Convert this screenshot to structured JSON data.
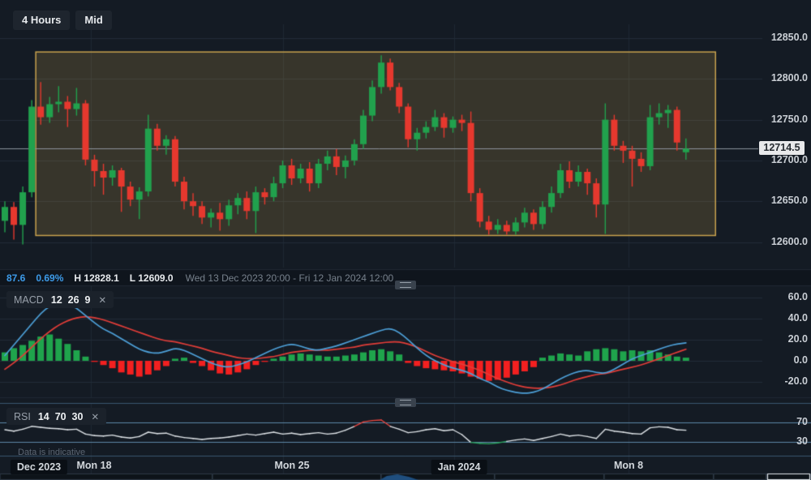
{
  "toolbar": {
    "timeframe_label": "4 Hours",
    "price_type_label": "Mid"
  },
  "price_axis": {
    "ticks": [
      {
        "value": 12850,
        "label": "12850.0"
      },
      {
        "value": 12800,
        "label": "12800.0"
      },
      {
        "value": 12750,
        "label": "12750.0"
      },
      {
        "value": 12700,
        "label": "12700.0"
      },
      {
        "value": 12650,
        "label": "12650.0"
      },
      {
        "value": 12600,
        "label": "12600.0"
      }
    ],
    "last_price_label": "12714.5"
  },
  "info_bar": {
    "change": "87.6",
    "change_pct": "0.69%",
    "high": "H 12828.1",
    "low": "L 12609.0",
    "date_range": "Wed 13 Dec 2023 20:00 - Fri 12 Jan 2024 12:00"
  },
  "macd_panel": {
    "name": "MACD",
    "params": "12  26  9",
    "close_label": "✕",
    "ticks": [
      {
        "value": 60,
        "label": "60.0"
      },
      {
        "value": 40,
        "label": "40.0"
      },
      {
        "value": 20,
        "label": "20.0"
      },
      {
        "value": 0,
        "label": "0.0"
      },
      {
        "value": -20,
        "label": "-20.0"
      }
    ]
  },
  "rsi_panel": {
    "name": "RSI",
    "params": "14  70  30",
    "close_label": "✕",
    "ticks": [
      {
        "value": 70,
        "label": "70"
      },
      {
        "value": 30,
        "label": "30"
      }
    ]
  },
  "time_axis": {
    "labels": [
      {
        "text": "Dec 2023",
        "chip": true
      },
      {
        "text": "Mon 18",
        "chip": false
      },
      {
        "text": "Mon 25",
        "chip": false
      },
      {
        "text": "Jan 2024",
        "chip": true
      },
      {
        "text": "Mon 8",
        "chip": false
      }
    ]
  },
  "footnote": "Data is indicative",
  "colors": {
    "background": "#141b24",
    "band_background": "#0f151d",
    "navigator_background": "#0d1319",
    "grid": "#222c38",
    "grid_vertical": "#1e2833",
    "candle_up": "#21a14d",
    "candle_down": "#e6382e",
    "box_border": "#c8a24e",
    "box_fill": "rgba(196,162,74,0.20)",
    "price_line": "#8b939c",
    "macd_line": "#4da0d8",
    "signal_line": "#e23d38",
    "hist_up": "#1fa44c",
    "hist_down": "#f32020",
    "rsi_line": "#dde2e6",
    "rsi_overbought": "#e8453f",
    "rsi_oversold": "#2aa35e",
    "level_line": "#5d87a8",
    "separator": "#1f2833",
    "navigator_box": "#2e3945",
    "navigator_highlight": "#dfe5ea",
    "navigator_area": "#1f4e7e"
  },
  "chart_data": [
    {
      "type": "candlestick",
      "timeframe": "4 Hours",
      "price_type": "Mid",
      "high": 12828.1,
      "low": 12609.0,
      "last_price": 12714.5,
      "ylim": [
        12555,
        12866
      ],
      "box_annotation": {
        "top": 12833,
        "bottom": 12608,
        "start_index": 3.45,
        "end_index": 79.3
      },
      "candles": [
        [
          12626,
          12650,
          12612,
          12643
        ],
        [
          12643,
          12649,
          12603,
          12621
        ],
        [
          12621,
          12668,
          12597,
          12661
        ],
        [
          12661,
          12774,
          12655,
          12766
        ],
        [
          12766,
          12796,
          12744,
          12753
        ],
        [
          12753,
          12778,
          12746,
          12769
        ],
        [
          12769,
          12791,
          12759,
          12772
        ],
        [
          12772,
          12779,
          12741,
          12763
        ],
        [
          12763,
          12789,
          12755,
          12770
        ],
        [
          12770,
          12774,
          12694,
          12701
        ],
        [
          12701,
          12707,
          12668,
          12687
        ],
        [
          12687,
          12696,
          12658,
          12679
        ],
        [
          12679,
          12694,
          12669,
          12688
        ],
        [
          12688,
          12691,
          12637,
          12668
        ],
        [
          12668,
          12674,
          12644,
          12652
        ],
        [
          12652,
          12667,
          12628,
          12662
        ],
        [
          12662,
          12756,
          12656,
          12739
        ],
        [
          12739,
          12745,
          12712,
          12718
        ],
        [
          12718,
          12731,
          12707,
          12726
        ],
        [
          12726,
          12730,
          12668,
          12674
        ],
        [
          12674,
          12680,
          12640,
          12650
        ],
        [
          12650,
          12660,
          12632,
          12644
        ],
        [
          12644,
          12650,
          12622,
          12630
        ],
        [
          12630,
          12641,
          12618,
          12636
        ],
        [
          12636,
          12648,
          12614,
          12628
        ],
        [
          12628,
          12652,
          12620,
          12645
        ],
        [
          12645,
          12660,
          12634,
          12654
        ],
        [
          12654,
          12662,
          12628,
          12638
        ],
        [
          12638,
          12668,
          12611,
          12661
        ],
        [
          12661,
          12666,
          12646,
          12655
        ],
        [
          12655,
          12680,
          12650,
          12672
        ],
        [
          12672,
          12700,
          12666,
          12694
        ],
        [
          12694,
          12702,
          12670,
          12678
        ],
        [
          12678,
          12696,
          12672,
          12690
        ],
        [
          12690,
          12698,
          12662,
          12672
        ],
        [
          12672,
          12702,
          12666,
          12696
        ],
        [
          12696,
          12712,
          12688,
          12705
        ],
        [
          12705,
          12714,
          12682,
          12692
        ],
        [
          12692,
          12706,
          12678,
          12700
        ],
        [
          12700,
          12726,
          12694,
          12720
        ],
        [
          12720,
          12762,
          12714,
          12755
        ],
        [
          12755,
          12798,
          12748,
          12790
        ],
        [
          12790,
          12829,
          12782,
          12820
        ],
        [
          12820,
          12825,
          12786,
          12790
        ],
        [
          12790,
          12795,
          12758,
          12766
        ],
        [
          12766,
          12770,
          12716,
          12726
        ],
        [
          12726,
          12740,
          12712,
          12734
        ],
        [
          12734,
          12748,
          12727,
          12741
        ],
        [
          12741,
          12762,
          12736,
          12753
        ],
        [
          12753,
          12758,
          12728,
          12740
        ],
        [
          12740,
          12754,
          12734,
          12750
        ],
        [
          12750,
          12756,
          12736,
          12746
        ],
        [
          12746,
          12760,
          12650,
          12660
        ],
        [
          12660,
          12666,
          12618,
          12625
        ],
        [
          12625,
          12632,
          12609,
          12615
        ],
        [
          12615,
          12628,
          12610,
          12621
        ],
        [
          12621,
          12626,
          12609,
          12613
        ],
        [
          12613,
          12630,
          12609,
          12624
        ],
        [
          12624,
          12642,
          12618,
          12636
        ],
        [
          12636,
          12640,
          12615,
          12622
        ],
        [
          12622,
          12650,
          12616,
          12643
        ],
        [
          12643,
          12668,
          12636,
          12660
        ],
        [
          12660,
          12696,
          12654,
          12688
        ],
        [
          12688,
          12699,
          12666,
          12674
        ],
        [
          12674,
          12694,
          12668,
          12686
        ],
        [
          12686,
          12690,
          12658,
          12672
        ],
        [
          12672,
          12678,
          12630,
          12646
        ],
        [
          12646,
          12770,
          12610,
          12750
        ],
        [
          12750,
          12756,
          12712,
          12718
        ],
        [
          12718,
          12724,
          12697,
          12712
        ],
        [
          12712,
          12718,
          12668,
          12702
        ],
        [
          12702,
          12710,
          12686,
          12693
        ],
        [
          12693,
          12768,
          12688,
          12753
        ],
        [
          12753,
          12770,
          12744,
          12758
        ],
        [
          12758,
          12768,
          12740,
          12762
        ],
        [
          12762,
          12766,
          12712,
          12722
        ],
        [
          12710,
          12727,
          12701,
          12714.5
        ]
      ]
    },
    {
      "type": "bar+line",
      "name": "MACD",
      "params": [
        12,
        26,
        9
      ],
      "ylim": [
        -38,
        72
      ],
      "ticks": [
        60,
        40,
        20,
        0,
        -20
      ],
      "histogram": [
        8,
        12,
        15,
        19,
        23,
        25,
        21,
        16,
        10,
        4,
        -1,
        -4,
        -7,
        -11,
        -13,
        -15,
        -13,
        -9,
        -5,
        2,
        3,
        -2,
        -5,
        -9,
        -12,
        -13,
        -11,
        -8,
        -4,
        -1,
        2,
        4,
        6,
        7,
        6,
        5,
        4,
        4,
        5,
        6,
        8,
        10,
        11,
        9,
        6,
        -2,
        -5,
        -7,
        -8,
        -9,
        -10,
        -12,
        -15,
        -17,
        -19,
        -18,
        -16,
        -13,
        -10,
        -6,
        3,
        5,
        7,
        6,
        5,
        9,
        11,
        12,
        11,
        9,
        10,
        9,
        10,
        8,
        6,
        4,
        3
      ],
      "macd_line": [
        5,
        15,
        25,
        35,
        45,
        52,
        57,
        55,
        50,
        43,
        36,
        30,
        26,
        21,
        16,
        11,
        8,
        7,
        9,
        12,
        10,
        6,
        2,
        -2,
        -5,
        -6,
        -4,
        -1,
        3,
        7,
        11,
        14,
        16,
        14,
        11,
        10,
        12,
        14,
        17,
        20,
        23,
        26,
        29,
        31,
        27,
        20,
        12,
        5,
        0,
        -4,
        -7,
        -9,
        -12,
        -17,
        -20,
        -25,
        -28,
        -30,
        -31,
        -30,
        -27,
        -22,
        -17,
        -13,
        -10,
        -9,
        -11,
        -12,
        -8,
        -3,
        2,
        5,
        8,
        11,
        14,
        16,
        17
      ],
      "signal_line": [
        -8,
        -2,
        5,
        13,
        21,
        28,
        34,
        38,
        41,
        42,
        41,
        39,
        36,
        33,
        30,
        27,
        24,
        21,
        19,
        18,
        16,
        14,
        12,
        9,
        7,
        5,
        3,
        2,
        2,
        3,
        4,
        6,
        8,
        9,
        10,
        10,
        10,
        11,
        12,
        13,
        15,
        16,
        17,
        18,
        18,
        16,
        13,
        9,
        5,
        2,
        -1,
        -3,
        -6,
        -9,
        -13,
        -17,
        -20,
        -23,
        -25,
        -26,
        -26,
        -25,
        -23,
        -20,
        -17,
        -15,
        -13,
        -12,
        -10,
        -8,
        -6,
        -4,
        -1,
        2,
        5,
        8,
        11
      ]
    },
    {
      "type": "line",
      "name": "RSI",
      "params": [
        14,
        70,
        30
      ],
      "levels": [
        70,
        30
      ],
      "ylim": [
        10,
        110
      ],
      "values": [
        55,
        52,
        56,
        62,
        60,
        58,
        57,
        55,
        56,
        46,
        43,
        42,
        44,
        40,
        38,
        41,
        50,
        47,
        48,
        42,
        39,
        37,
        35,
        37,
        38,
        40,
        43,
        46,
        44,
        47,
        50,
        46,
        48,
        45,
        47,
        49,
        46,
        48,
        54,
        62,
        71,
        74,
        75,
        62,
        56,
        49,
        51,
        55,
        57,
        53,
        55,
        45,
        29,
        27,
        26,
        28,
        31,
        34,
        36,
        33,
        37,
        41,
        46,
        42,
        44,
        41,
        37,
        56,
        52,
        50,
        47,
        46,
        59,
        61,
        60,
        55,
        54
      ]
    }
  ]
}
